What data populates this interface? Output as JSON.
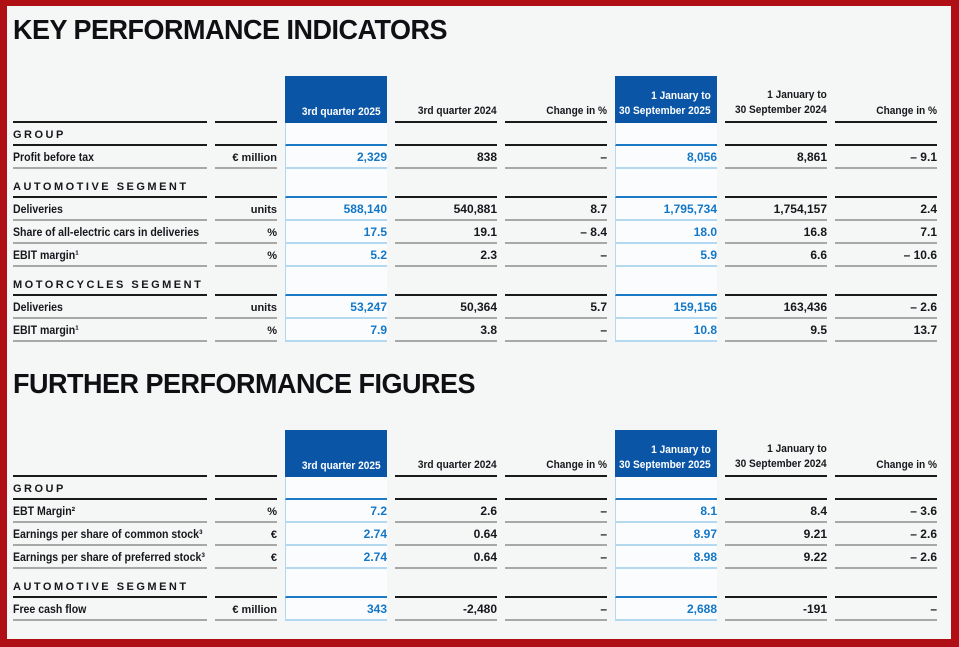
{
  "page": {
    "background": "#f5f6f6",
    "border_color": "#b01015"
  },
  "colors": {
    "header_blue": "#0a55a6",
    "value_blue": "#1377c5",
    "section_rule_blue": "#1a7ac5",
    "row_rule_blue": "#b3d8ef",
    "highlight_column_bg": "#fbfcfe",
    "section_rule_dark": "#1a1a1c",
    "row_rule_gray": "#a8a8a8",
    "text": "#17171c"
  },
  "tables": [
    {
      "title": "KEY PERFORMANCE INDICATORS",
      "header": {
        "q2025": "3rd quarter 2025",
        "q2024": "3rd quarter 2024",
        "change": "Change in %",
        "ytd2025_line1": "1 January to",
        "ytd2025_line2": "30 September 2025",
        "ytd2024_line1": "1 January to",
        "ytd2024_line2": "30 September 2024",
        "change2": "Change in %"
      },
      "sections": [
        {
          "name": "GROUP",
          "rows": [
            {
              "label": "Profit before tax",
              "unit": "€ million",
              "q2025": "2,329",
              "q2024": "838",
              "change": "–",
              "ytd2025": "8,056",
              "ytd2024": "8,861",
              "change2": "– 9.1"
            }
          ]
        },
        {
          "name": "AUTOMOTIVE SEGMENT",
          "rows": [
            {
              "label": "Deliveries",
              "unit": "units",
              "q2025": "588,140",
              "q2024": "540,881",
              "change": "8.7",
              "ytd2025": "1,795,734",
              "ytd2024": "1,754,157",
              "change2": "2.4"
            },
            {
              "label": "Share of all-electric cars in deliveries",
              "unit": "%",
              "q2025": "17.5",
              "q2024": "19.1",
              "change": "– 8.4",
              "ytd2025": "18.0",
              "ytd2024": "16.8",
              "change2": "7.1"
            },
            {
              "label": "EBIT margin¹",
              "unit": "%",
              "q2025": "5.2",
              "q2024": "2.3",
              "change": "–",
              "ytd2025": "5.9",
              "ytd2024": "6.6",
              "change2": "– 10.6"
            }
          ]
        },
        {
          "name": "MOTORCYCLES SEGMENT",
          "rows": [
            {
              "label": "Deliveries",
              "unit": "units",
              "q2025": "53,247",
              "q2024": "50,364",
              "change": "5.7",
              "ytd2025": "159,156",
              "ytd2024": "163,436",
              "change2": "– 2.6"
            },
            {
              "label": "EBIT margin¹",
              "unit": "%",
              "q2025": "7.9",
              "q2024": "3.8",
              "change": "–",
              "ytd2025": "10.8",
              "ytd2024": "9.5",
              "change2": "13.7"
            }
          ]
        }
      ]
    },
    {
      "title": "FURTHER PERFORMANCE FIGURES",
      "header": {
        "q2025": "3rd quarter 2025",
        "q2024": "3rd quarter 2024",
        "change": "Change in %",
        "ytd2025_line1": "1 January to",
        "ytd2025_line2": "30 September 2025",
        "ytd2024_line1": "1 January to",
        "ytd2024_line2": "30 September 2024",
        "change2": "Change in %"
      },
      "sections": [
        {
          "name": "GROUP",
          "rows": [
            {
              "label": "EBT Margin²",
              "unit": "%",
              "q2025": "7.2",
              "q2024": "2.6",
              "change": "–",
              "ytd2025": "8.1",
              "ytd2024": "8.4",
              "change2": "– 3.6"
            },
            {
              "label": "Earnings per share of common stock³",
              "unit": "€",
              "q2025": "2.74",
              "q2024": "0.64",
              "change": "–",
              "ytd2025": "8.97",
              "ytd2024": "9.21",
              "change2": "– 2.6"
            },
            {
              "label": "Earnings per share of preferred stock³",
              "unit": "€",
              "q2025": "2.74",
              "q2024": "0.64",
              "change": "–",
              "ytd2025": "8.98",
              "ytd2024": "9.22",
              "change2": "– 2.6"
            }
          ]
        },
        {
          "name": "AUTOMOTIVE SEGMENT",
          "rows": [
            {
              "label": "Free cash flow",
              "unit": "€ million",
              "q2025": "343",
              "q2024": "-2,480",
              "change": "–",
              "ytd2025": "2,688",
              "ytd2024": "-191",
              "change2": "–"
            }
          ]
        }
      ]
    }
  ]
}
